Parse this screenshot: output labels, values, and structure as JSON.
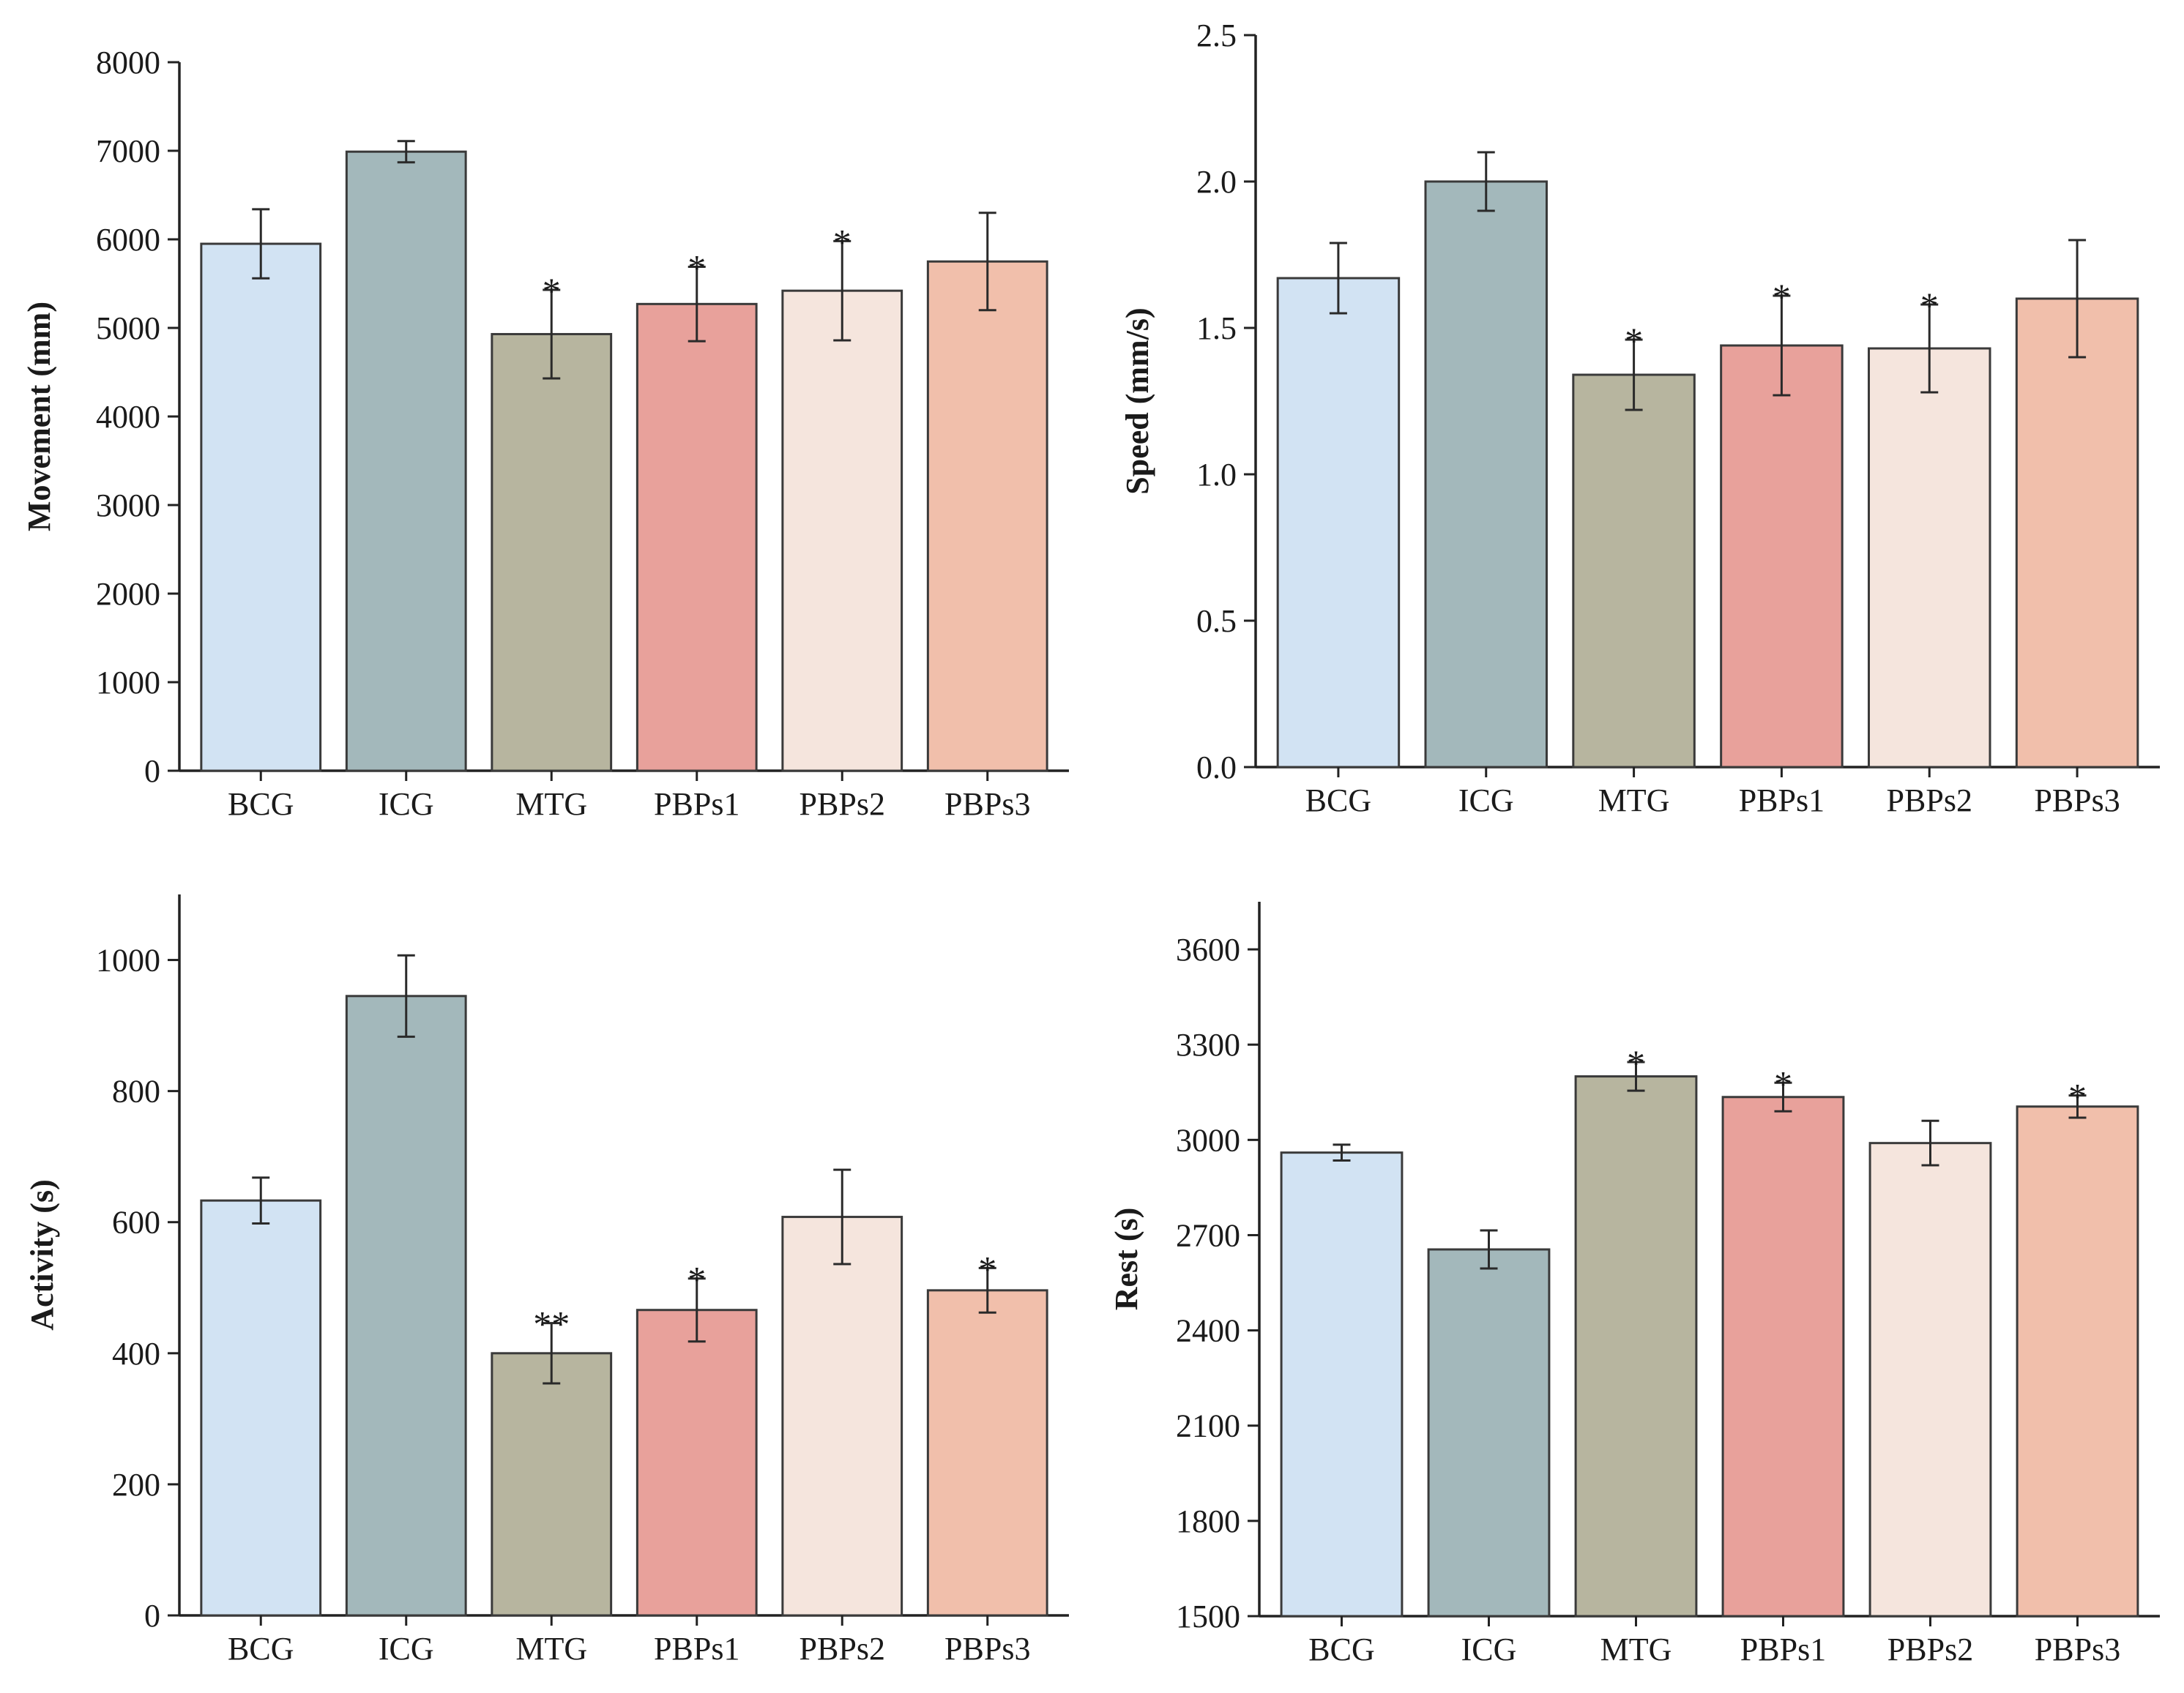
{
  "colors": {
    "BCG": "#d2e3f3",
    "ICG": "#a3b8bb",
    "MTG": "#b7b59f",
    "PBPs1": "#e8a19b",
    "PBPs2": "#f5e5dd",
    "PBPs3": "#f1bfab"
  },
  "chart_data": [
    {
      "type": "bar",
      "categories": [
        "BCG",
        "ICG",
        "MTG",
        "PBPs1",
        "PBPs2",
        "PBPs3"
      ],
      "values": [
        5950,
        6990,
        4930,
        5270,
        5420,
        5750
      ],
      "errors": [
        390,
        120,
        500,
        420,
        560,
        550
      ],
      "significance": [
        "",
        "",
        "*",
        "*",
        "*",
        ""
      ],
      "ylabel": "Movement (mm)",
      "ylim": [
        0,
        8000
      ],
      "yticks": [
        0,
        1000,
        2000,
        3000,
        4000,
        5000,
        6000,
        7000,
        8000
      ],
      "ytick_labels": [
        "0",
        "1000",
        "2000",
        "3000",
        "4000",
        "5000",
        "6000",
        "7000",
        "8000"
      ]
    },
    {
      "type": "bar",
      "categories": [
        "BCG",
        "ICG",
        "MTG",
        "PBPs1",
        "PBPs2",
        "PBPs3"
      ],
      "values": [
        1.67,
        2.0,
        1.34,
        1.44,
        1.43,
        1.6
      ],
      "errors": [
        0.12,
        0.1,
        0.12,
        0.17,
        0.15,
        0.2
      ],
      "significance": [
        "",
        "",
        "*",
        "*",
        "*",
        ""
      ],
      "ylabel": "Speed (mm/s)",
      "ylim": [
        0,
        2.5
      ],
      "yticks": [
        0,
        0.5,
        1.0,
        1.5,
        2.0,
        2.5
      ],
      "ytick_labels": [
        "0.0",
        "0.5",
        "1.0",
        "1.5",
        "2.0",
        "2.5"
      ]
    },
    {
      "type": "bar",
      "categories": [
        "BCG",
        "ICG",
        "MTG",
        "PBPs1",
        "PBPs2",
        "PBPs3"
      ],
      "values": [
        633,
        945,
        400,
        466,
        608,
        496
      ],
      "errors": [
        35,
        62,
        46,
        48,
        72,
        34
      ],
      "significance": [
        "",
        "",
        "**",
        "*",
        "",
        "*"
      ],
      "ylabel": "Activity (s)",
      "ylim": [
        0,
        1100
      ],
      "yticks": [
        0,
        200,
        400,
        600,
        800,
        1000
      ],
      "ytick_labels": [
        "0",
        "200",
        "400",
        "600",
        "800",
        "1000"
      ]
    },
    {
      "type": "bar",
      "categories": [
        "BCG",
        "ICG",
        "MTG",
        "PBPs1",
        "PBPs2",
        "PBPs3"
      ],
      "values": [
        2960,
        2655,
        3200,
        3135,
        2990,
        3105
      ],
      "errors": [
        25,
        60,
        45,
        45,
        70,
        35
      ],
      "significance": [
        "",
        "",
        "*",
        "*",
        "",
        "*"
      ],
      "ylabel": "Rest (s)",
      "ylim": [
        1500,
        3750
      ],
      "yticks": [
        1500,
        1800,
        2100,
        2400,
        2700,
        3000,
        3300,
        3600
      ],
      "ytick_labels": [
        "1500",
        "1800",
        "2100",
        "2400",
        "2700",
        "3000",
        "3300",
        "3600"
      ]
    }
  ]
}
